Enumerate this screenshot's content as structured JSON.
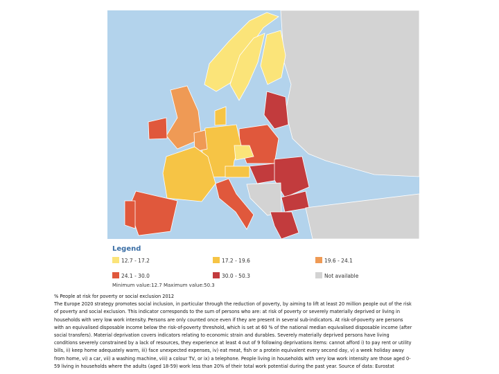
{
  "legend": {
    "title": "Legend",
    "items": [
      {
        "label": "12.7 - 17.2",
        "color": "#fbe479"
      },
      {
        "label": "17.2 - 19.6",
        "color": "#f6c445"
      },
      {
        "label": "19.6 - 24.1",
        "color": "#ef9a55"
      },
      {
        "label": "24.1 - 30.0",
        "color": "#e0583c"
      },
      {
        "label": "30.0 - 50.3",
        "color": "#c23b3d"
      },
      {
        "label": "Not available",
        "color": "#d3d3d3"
      }
    ],
    "range_note": "Minimum value:12.7 Maximum value:50.3"
  },
  "description": {
    "lines": [
      "% People at risk for poverty or social exclusion 2012",
      "The Europe 2020 strategy promotes social inclusion, in particular through the reduction of poverty, by aiming to lift at least 20 million people out of the risk",
      "of poverty and social exclusion. This indicator corresponds to the sum of persons who are: at risk of poverty or severely materially deprived or living in",
      "households with very low work intensity. Persons are only counted once even if they are present in several sub-indicators. At risk-of-poverty are persons",
      "with an equivalised disposable income below the risk-of-poverty threshold, which is set at 60 % of the national median equivalised disposable income (after",
      "social transfers). Material deprivation covers indicators relating to economic strain and durables. Severely materially deprived persons have living",
      "conditions severely constrained by a lack of resources, they experience at least 4 out of 9 following deprivations items: cannot afford i) to pay rent or utility",
      "bills, ii) keep home adequately warm, iii) face unexpected expenses, iv) eat meat, fish or a protein equivalent every second day, v) a week holiday away",
      "from home, vi) a car, vii) a washing machine, viii) a colour TV, or ix) a telephone. People living in households with very low work intensity are those aged 0-",
      "59 living in households where the adults (aged 18-59) work less than 20% of their total work potential during the past year. Source of data: Eurostat"
    ]
  }
}
